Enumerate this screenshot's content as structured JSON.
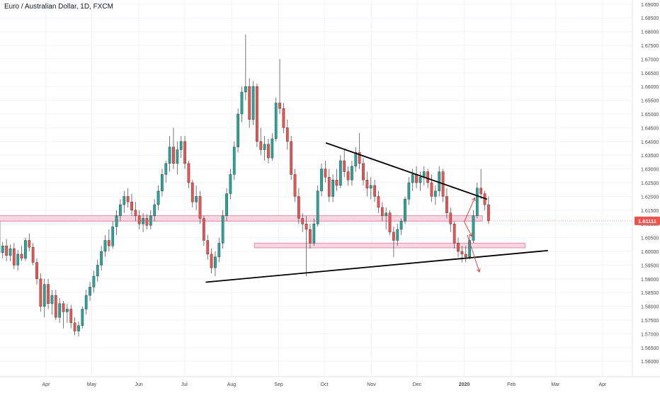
{
  "chart_data": {
    "type": "candlestick",
    "title": "Euro / Australian Dollar, 1D, FXCM",
    "last_price": "1.61111",
    "y_ticks": [
      "1.69000",
      "1.68500",
      "1.68000",
      "1.67500",
      "1.67000",
      "1.66500",
      "1.66000",
      "1.65500",
      "1.65000",
      "1.64500",
      "1.64000",
      "1.63500",
      "1.63000",
      "1.62500",
      "1.62000",
      "1.61500",
      "1.61000",
      "1.60500",
      "1.60000",
      "1.59500",
      "1.59000",
      "1.58500",
      "1.58000",
      "1.57500",
      "1.57000",
      "1.56500",
      "1.56000"
    ],
    "ylim": [
      1.5575,
      1.6915
    ],
    "x_ticks": [
      "Apr",
      "May",
      "Jun",
      "Jul",
      "Aug",
      "Sep",
      "Oct",
      "Nov",
      "Dec",
      "2020",
      "Feb",
      "Mar",
      "Apr"
    ],
    "x_tick_days": [
      31,
      61,
      92,
      122,
      153,
      184,
      214,
      245,
      275,
      306,
      337,
      366,
      397
    ],
    "candles": [
      [
        1.611,
        1.6135,
        1.5985,
        1.5995
      ],
      [
        1.5995,
        1.6035,
        1.5975,
        1.602
      ],
      [
        1.602,
        1.6045,
        1.5965,
        1.5985
      ],
      [
        1.5985,
        1.6025,
        1.5965,
        1.601
      ],
      [
        1.601,
        1.603,
        1.5935,
        1.595
      ],
      [
        1.595,
        1.6005,
        1.593,
        1.599
      ],
      [
        1.599,
        1.602,
        1.5965,
        1.5975
      ],
      [
        1.5975,
        1.605,
        1.5965,
        1.604
      ],
      [
        1.604,
        1.6065,
        1.6,
        1.6015
      ],
      [
        1.6015,
        1.603,
        1.595,
        1.596
      ],
      [
        1.596,
        1.5975,
        1.588,
        1.59
      ],
      [
        1.59,
        1.592,
        1.578,
        1.58
      ],
      [
        1.58,
        1.59,
        1.576,
        1.588
      ],
      [
        1.588,
        1.59,
        1.579,
        1.581
      ],
      [
        1.581,
        1.586,
        1.577,
        1.584
      ],
      [
        1.584,
        1.586,
        1.575,
        1.576
      ],
      [
        1.576,
        1.583,
        1.574,
        1.581
      ],
      [
        1.581,
        1.582,
        1.572,
        1.578
      ],
      [
        1.578,
        1.581,
        1.574,
        1.579
      ],
      [
        1.579,
        1.5805,
        1.572,
        1.574
      ],
      [
        1.574,
        1.576,
        1.5695,
        1.571
      ],
      [
        1.571,
        1.5745,
        1.569,
        1.573
      ],
      [
        1.573,
        1.58,
        1.572,
        1.579
      ],
      [
        1.579,
        1.586,
        1.577,
        1.584
      ],
      [
        1.584,
        1.589,
        1.582,
        1.587
      ],
      [
        1.587,
        1.593,
        1.585,
        1.591
      ],
      [
        1.591,
        1.597,
        1.589,
        1.595
      ],
      [
        1.595,
        1.602,
        1.593,
        1.6
      ],
      [
        1.6,
        1.606,
        1.598,
        1.604
      ],
      [
        1.604,
        1.608,
        1.6,
        1.602
      ],
      [
        1.602,
        1.611,
        1.601,
        1.609
      ],
      [
        1.609,
        1.615,
        1.606,
        1.613
      ],
      [
        1.613,
        1.619,
        1.611,
        1.617
      ],
      [
        1.617,
        1.622,
        1.614,
        1.62
      ],
      [
        1.62,
        1.623,
        1.616,
        1.618
      ],
      [
        1.618,
        1.621,
        1.613,
        1.615
      ],
      [
        1.615,
        1.618,
        1.611,
        1.613
      ],
      [
        1.613,
        1.615,
        1.608,
        1.61
      ],
      [
        1.61,
        1.614,
        1.607,
        1.612
      ],
      [
        1.612,
        1.6135,
        1.608,
        1.6095
      ],
      [
        1.6095,
        1.615,
        1.608,
        1.613
      ],
      [
        1.613,
        1.619,
        1.611,
        1.617
      ],
      [
        1.617,
        1.624,
        1.615,
        1.622
      ],
      [
        1.622,
        1.63,
        1.62,
        1.628
      ],
      [
        1.628,
        1.633,
        1.625,
        1.632
      ],
      [
        1.632,
        1.642,
        1.629,
        1.638
      ],
      [
        1.638,
        1.645,
        1.63,
        1.632
      ],
      [
        1.632,
        1.64,
        1.628,
        1.637
      ],
      [
        1.637,
        1.642,
        1.634,
        1.64
      ],
      [
        1.64,
        1.642,
        1.63,
        1.632
      ],
      [
        1.632,
        1.633,
        1.623,
        1.625
      ],
      [
        1.625,
        1.626,
        1.616,
        1.618
      ],
      [
        1.618,
        1.624,
        1.615,
        1.62
      ],
      [
        1.62,
        1.622,
        1.61,
        1.612
      ],
      [
        1.612,
        1.613,
        1.602,
        1.604
      ],
      [
        1.604,
        1.606,
        1.597,
        1.599
      ],
      [
        1.599,
        1.601,
        1.592,
        1.594
      ],
      [
        1.594,
        1.6,
        1.591,
        1.598
      ],
      [
        1.598,
        1.605,
        1.596,
        1.603
      ],
      [
        1.603,
        1.615,
        1.601,
        1.613
      ],
      [
        1.613,
        1.623,
        1.611,
        1.621
      ],
      [
        1.621,
        1.63,
        1.619,
        1.628
      ],
      [
        1.628,
        1.64,
        1.626,
        1.638
      ],
      [
        1.638,
        1.652,
        1.636,
        1.65
      ],
      [
        1.65,
        1.66,
        1.647,
        1.658
      ],
      [
        1.658,
        1.679,
        1.655,
        1.66
      ],
      [
        1.66,
        1.663,
        1.645,
        1.648
      ],
      [
        1.648,
        1.662,
        1.646,
        1.66
      ],
      [
        1.66,
        1.661,
        1.638,
        1.64
      ],
      [
        1.64,
        1.645,
        1.635,
        1.637
      ],
      [
        1.637,
        1.642,
        1.633,
        1.639
      ],
      [
        1.639,
        1.641,
        1.632,
        1.634
      ],
      [
        1.634,
        1.643,
        1.633,
        1.641
      ],
      [
        1.641,
        1.656,
        1.64,
        1.654
      ],
      [
        1.654,
        1.67,
        1.65,
        1.652
      ],
      [
        1.652,
        1.654,
        1.643,
        1.645
      ],
      [
        1.645,
        1.648,
        1.637,
        1.64
      ],
      [
        1.64,
        1.642,
        1.626,
        1.628
      ],
      [
        1.628,
        1.63,
        1.618,
        1.62
      ],
      [
        1.62,
        1.623,
        1.61,
        1.612
      ],
      [
        1.612,
        1.614,
        1.607,
        1.61
      ],
      [
        1.61,
        1.613,
        1.591,
        1.608
      ],
      [
        1.608,
        1.61,
        1.601,
        1.603
      ],
      [
        1.603,
        1.612,
        1.602,
        1.61
      ],
      [
        1.61,
        1.624,
        1.609,
        1.622
      ],
      [
        1.622,
        1.632,
        1.62,
        1.63
      ],
      [
        1.63,
        1.633,
        1.625,
        1.627
      ],
      [
        1.627,
        1.63,
        1.618,
        1.62
      ],
      [
        1.62,
        1.628,
        1.618,
        1.626
      ],
      [
        1.626,
        1.63,
        1.622,
        1.624
      ],
      [
        1.624,
        1.635,
        1.623,
        1.633
      ],
      [
        1.633,
        1.637,
        1.627,
        1.629
      ],
      [
        1.629,
        1.631,
        1.624,
        1.626
      ],
      [
        1.626,
        1.633,
        1.624,
        1.631
      ],
      [
        1.631,
        1.638,
        1.629,
        1.636
      ],
      [
        1.636,
        1.643,
        1.63,
        1.632
      ],
      [
        1.632,
        1.634,
        1.624,
        1.626
      ],
      [
        1.626,
        1.629,
        1.62,
        1.623
      ],
      [
        1.623,
        1.627,
        1.619,
        1.624
      ],
      [
        1.624,
        1.626,
        1.618,
        1.62
      ],
      [
        1.62,
        1.622,
        1.614,
        1.616
      ],
      [
        1.616,
        1.618,
        1.611,
        1.613
      ],
      [
        1.613,
        1.616,
        1.608,
        1.614
      ],
      [
        1.614,
        1.615,
        1.606,
        1.607
      ],
      [
        1.607,
        1.609,
        1.598,
        1.604
      ],
      [
        1.604,
        1.61,
        1.602,
        1.608
      ],
      [
        1.608,
        1.612,
        1.606,
        1.611
      ],
      [
        1.611,
        1.62,
        1.61,
        1.619
      ],
      [
        1.619,
        1.627,
        1.617,
        1.625
      ],
      [
        1.625,
        1.63,
        1.622,
        1.628
      ],
      [
        1.628,
        1.631,
        1.623,
        1.625
      ],
      [
        1.625,
        1.629,
        1.622,
        1.627
      ],
      [
        1.627,
        1.631,
        1.624,
        1.629
      ],
      [
        1.629,
        1.63,
        1.623,
        1.625
      ],
      [
        1.625,
        1.628,
        1.618,
        1.62
      ],
      [
        1.62,
        1.624,
        1.617,
        1.622
      ],
      [
        1.622,
        1.631,
        1.62,
        1.629
      ],
      [
        1.629,
        1.63,
        1.618,
        1.62
      ],
      [
        1.62,
        1.623,
        1.612,
        1.614
      ],
      [
        1.614,
        1.616,
        1.607,
        1.61
      ],
      [
        1.61,
        1.611,
        1.601,
        1.603
      ],
      [
        1.603,
        1.605,
        1.598,
        1.6
      ],
      [
        1.6,
        1.602,
        1.596,
        1.599
      ],
      [
        1.599,
        1.602,
        1.596,
        1.598
      ],
      [
        1.598,
        1.606,
        1.597,
        1.604
      ],
      [
        1.604,
        1.615,
        1.603,
        1.613
      ],
      [
        1.613,
        1.625,
        1.612,
        1.623
      ],
      [
        1.623,
        1.63,
        1.619,
        1.621
      ],
      [
        1.621,
        1.622,
        1.615,
        1.617
      ],
      [
        1.617,
        1.62,
        1.61,
        1.6111
      ]
    ],
    "lines": [
      {
        "name": "upper-trendline",
        "x1": 215,
        "y1": 1.6395,
        "x2": 321,
        "y2": 1.619
      },
      {
        "name": "lower-trendline",
        "x1": 136,
        "y1": 1.5888,
        "x2": 361,
        "y2": 1.6003
      }
    ],
    "zones": [
      {
        "name": "upper-zone",
        "x1": 0,
        "x2": 318,
        "y1": 1.611,
        "y2": 1.613
      },
      {
        "name": "lower-zone",
        "x1": 168,
        "x2": 346,
        "y1": 1.6013,
        "y2": 1.603
      }
    ],
    "arrows": [
      {
        "name": "arrow-up",
        "x1": 306,
        "y1": 1.6108,
        "x2": 313,
        "y2": 1.6195
      },
      {
        "name": "arrow-mid",
        "x1": 306,
        "y1": 1.6108,
        "x2": 311,
        "y2": 1.6055
      },
      {
        "name": "arrow-down",
        "x1": 308,
        "y1": 1.606,
        "x2": 316,
        "y2": 1.5925
      }
    ],
    "colors": {
      "up": "#26a69a",
      "down": "#ef5350",
      "wick": "#555555",
      "zone_fill": "#f8d7e3",
      "zone_border": "#e18fab",
      "arrow": "#e04646",
      "trendline": "#000000",
      "grid": "#f0f3fa",
      "axis_text": "#4a4a4a",
      "price_label": "#ef5350",
      "price_line": "#f18b8b"
    }
  }
}
